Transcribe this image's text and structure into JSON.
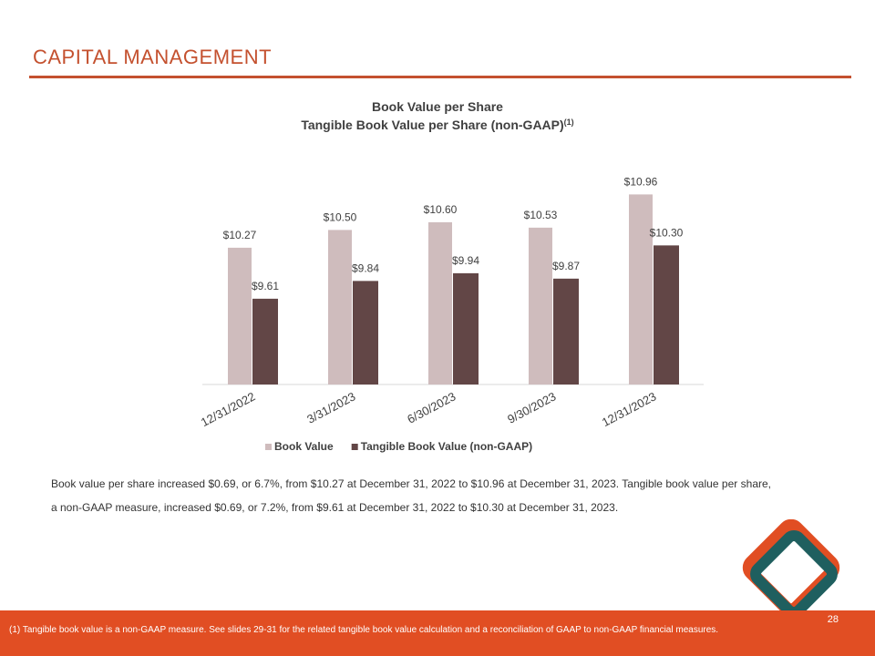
{
  "header": {
    "title": "CAPITAL MANAGEMENT"
  },
  "chart_data": {
    "type": "bar",
    "title": "Book Value per Share",
    "subtitle": "Tangible Book Value per Share (non-GAAP)",
    "subtitle_note": "(1)",
    "categories": [
      "12/31/2022",
      "3/31/2023",
      "6/30/2023",
      "9/30/2023",
      "12/31/2023"
    ],
    "series": [
      {
        "name": "Book Value",
        "color": "#cfbcbd",
        "values": [
          10.27,
          10.5,
          10.6,
          10.53,
          10.96
        ],
        "value_labels": [
          "$10.27",
          "$10.50",
          "$10.60",
          "$10.53",
          "$10.96"
        ]
      },
      {
        "name": "Tangible Book Value (non-GAAP)",
        "color": "#624646",
        "values": [
          9.61,
          9.84,
          9.94,
          9.87,
          10.3
        ],
        "value_labels": [
          "$9.61",
          "$9.84",
          "$9.94",
          "$9.87",
          "$10.30"
        ]
      }
    ],
    "ylim": [
      8.5,
      11.0
    ],
    "legend": "bottom"
  },
  "body": {
    "paragraph": "Book value per share increased $0.69, or 6.7%, from $10.27 at December 31, 2022 to $10.96 at December 31, 2023. Tangible book value per share, a non-GAAP measure, increased $0.69, or 7.2%, from $9.61 at December 31, 2022 to $10.30 at December 31, 2023."
  },
  "footer": {
    "page_number": "28",
    "footnote": "(1) Tangible book value is a non-GAAP measure. See slides 29-31 for the related tangible book value calculation and a reconciliation of GAAP to non-GAAP financial measures."
  }
}
